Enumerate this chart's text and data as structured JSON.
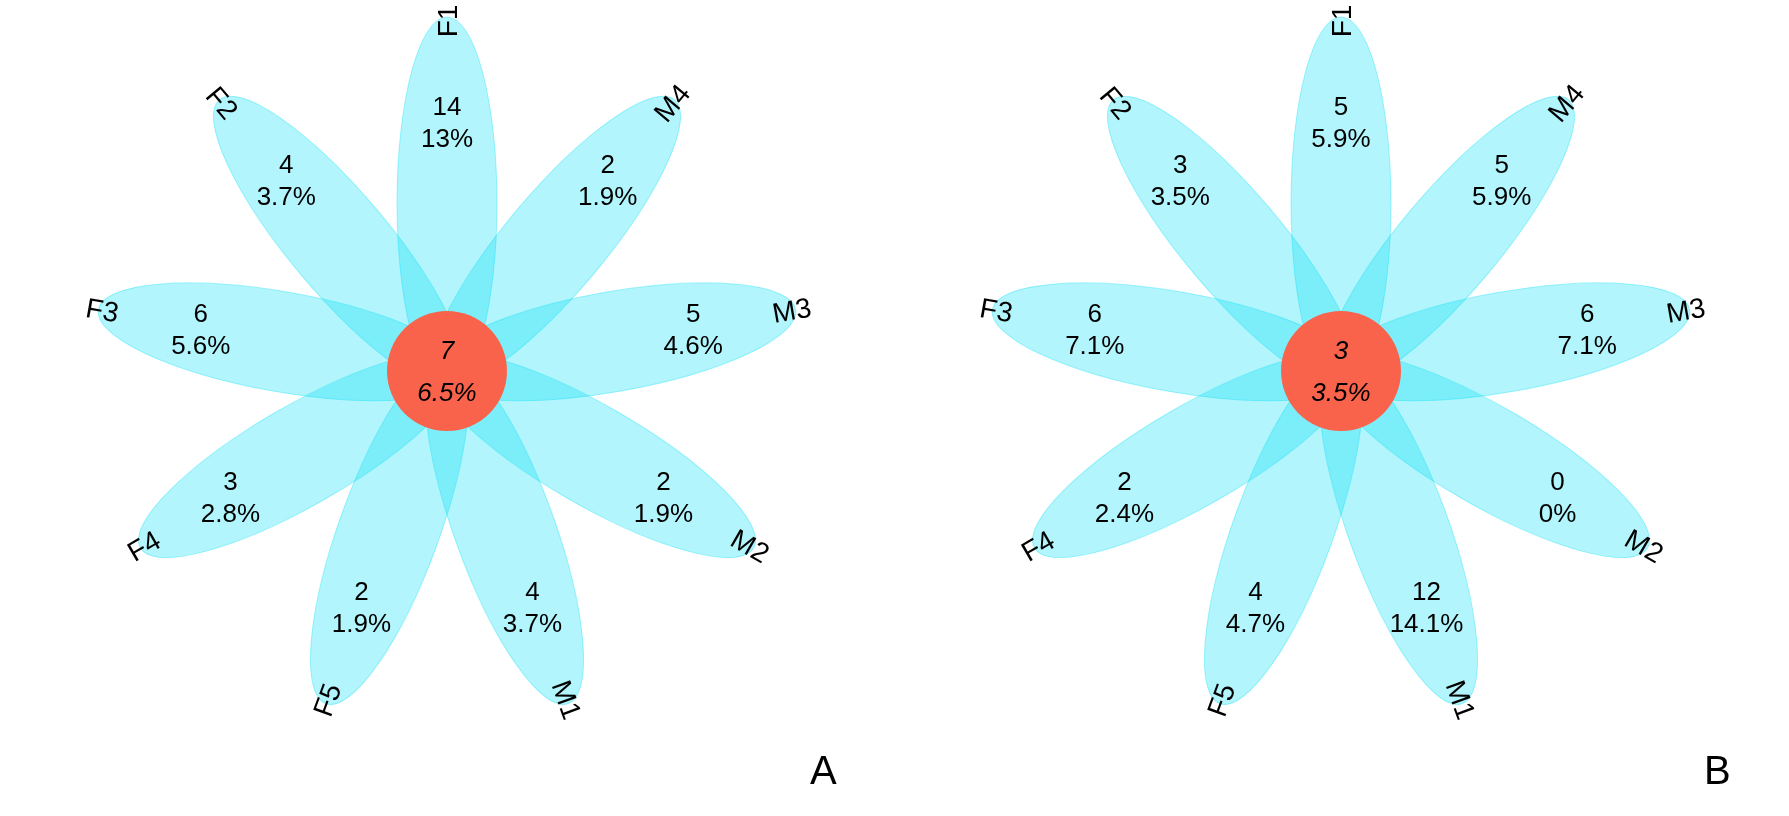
{
  "chart_data": [
    {
      "type": "other",
      "title": "A",
      "categories": [
        "F1",
        "M4",
        "M3",
        "M2",
        "M1",
        "F5",
        "F4",
        "F3",
        "F2"
      ],
      "data_labels": true,
      "series": [
        {
          "values": [
            14,
            2,
            5,
            2,
            4,
            2,
            3,
            6,
            4
          ]
        },
        {
          "values": [
            13,
            1.9,
            4.6,
            1.9,
            3.7,
            1.9,
            2.8,
            5.6,
            3.7
          ],
          "value_labels": [
            "13%",
            "1.9%",
            "4.6%",
            "1.9%",
            "3.7%",
            "1.9%",
            "2.8%",
            "5.6%",
            "3.7%"
          ]
        }
      ],
      "annotations": [
        "7",
        "6.5%"
      ],
      "colors": [
        "#00dff5",
        "#00dff5",
        "#00dff5",
        "#00dff5",
        "#00dff5",
        "#00dff5",
        "#00dff5",
        "#00dff5",
        "#00dff5"
      ]
    },
    {
      "type": "other",
      "title": "B",
      "categories": [
        "F1",
        "M4",
        "M3",
        "M2",
        "M1",
        "F5",
        "F4",
        "F3",
        "F2"
      ],
      "data_labels": true,
      "series": [
        {
          "values": [
            5,
            5,
            6,
            0,
            12,
            4,
            2,
            6,
            3
          ]
        },
        {
          "values": [
            5.9,
            5.9,
            7.1,
            0,
            14.1,
            4.7,
            2.4,
            7.1,
            3.5
          ],
          "value_labels": [
            "5.9%",
            "5.9%",
            "7.1%",
            "0%",
            "14.1%",
            "4.7%",
            "2.4%",
            "7.1%",
            "3.5%"
          ]
        }
      ],
      "annotations": [
        "3",
        "3.5%"
      ],
      "colors": [
        "#00dff5",
        "#00dff5",
        "#00dff5",
        "#00dff5",
        "#00dff5",
        "#00dff5",
        "#00dff5",
        "#00dff5",
        "#00dff5"
      ]
    }
  ]
}
